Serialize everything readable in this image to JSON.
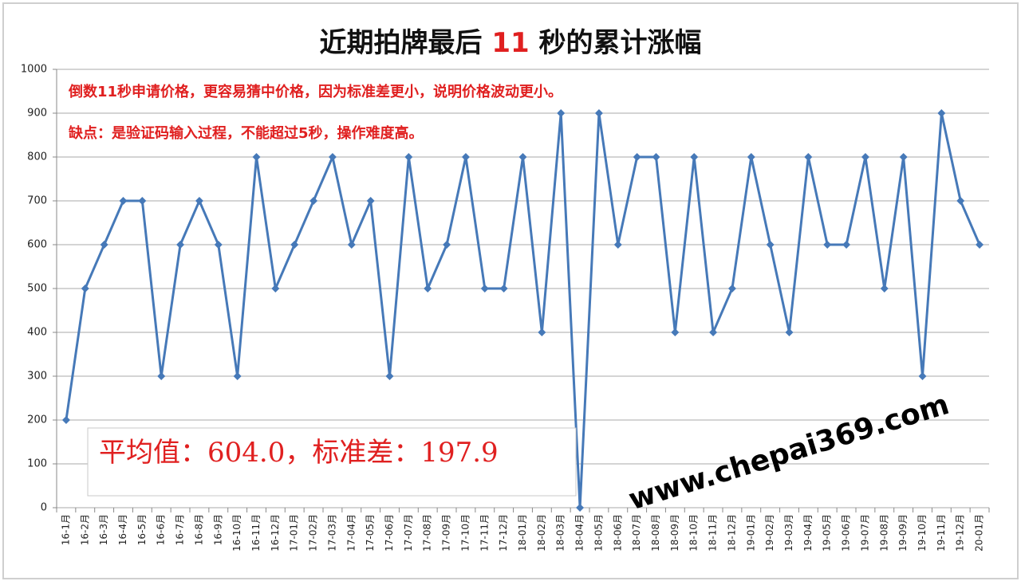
{
  "chart_data": {
    "type": "line",
    "title": [
      "近期拍牌最后 ",
      "11",
      " 秒的累计涨幅"
    ],
    "annotations": [
      "倒数11秒申请价格，更容易猜中价格，因为标准差更小，说明价格波动更小。",
      "缺点：是验证码输入过程，不能超过5秒，操作难度高。"
    ],
    "stats_label": "平均值：604.0，标准差：197.9",
    "watermark": "www.chepai369.com",
    "categories": [
      "16-1月",
      "16-2月",
      "16-3月",
      "16-4月",
      "16-5月",
      "16-6月",
      "16-7月",
      "16-8月",
      "16-9月",
      "16-10月",
      "16-11月",
      "16-12月",
      "17-01月",
      "17-02月",
      "17-03月",
      "17-04月",
      "17-05月",
      "17-06月",
      "17-07月",
      "17-08月",
      "17-09月",
      "17-10月",
      "17-11月",
      "17-12月",
      "18-01月",
      "18-02月",
      "18-03月",
      "18-04月",
      "18-05月",
      "18-06月",
      "18-07月",
      "18-08月",
      "18-09月",
      "18-10月",
      "18-11月",
      "18-12月",
      "19-01月",
      "19-02月",
      "19-03月",
      "19-04月",
      "19-05月",
      "19-06月",
      "19-07月",
      "19-08月",
      "19-09月",
      "19-10月",
      "19-11月",
      "19-12月",
      "20-01月"
    ],
    "values": [
      200,
      500,
      600,
      700,
      700,
      300,
      600,
      700,
      600,
      300,
      800,
      500,
      600,
      700,
      800,
      600,
      700,
      300,
      800,
      500,
      600,
      800,
      500,
      500,
      800,
      400,
      900,
      0,
      900,
      600,
      800,
      800,
      400,
      800,
      400,
      500,
      800,
      600,
      400,
      800,
      600,
      600,
      800,
      500,
      800,
      300,
      900,
      700,
      600
    ],
    "color": "#4679b8",
    "ylim": [
      0,
      1000
    ],
    "yticks": [
      0,
      100,
      200,
      300,
      400,
      500,
      600,
      700,
      800,
      900,
      1000
    ],
    "grid": true
  }
}
